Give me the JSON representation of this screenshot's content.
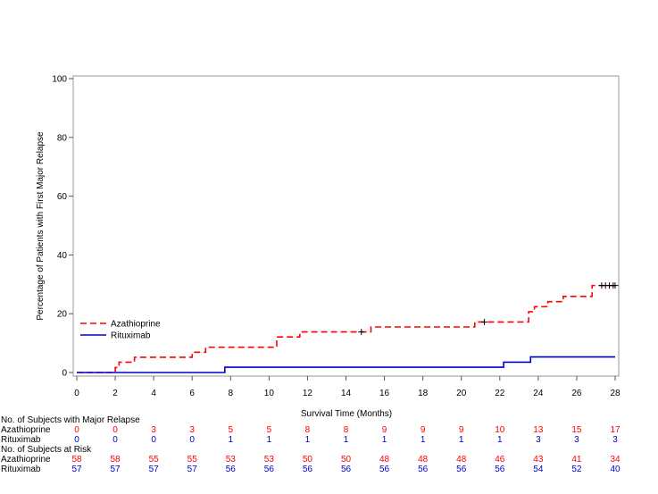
{
  "chart_data": {
    "type": "line",
    "title": "",
    "xlabel": "Survival Time (Months)",
    "ylabel": "Percentage of Patients with First Major Relapse",
    "xlim": [
      0,
      28
    ],
    "ylim": [
      0,
      100
    ],
    "x_ticks": [
      0,
      2,
      4,
      6,
      8,
      10,
      12,
      14,
      16,
      18,
      20,
      22,
      24,
      26,
      28
    ],
    "y_ticks": [
      0,
      20,
      40,
      60,
      80,
      100
    ],
    "grid": false,
    "legend_position": "lower-left",
    "series": [
      {
        "name": "Azathioprine",
        "color": "#ff0000",
        "style": "dashed",
        "x": [
          0,
          2,
          2.2,
          3.0,
          6.0,
          6.7,
          10.4,
          11.6,
          15.3,
          20.7,
          23.5,
          23.8,
          24.5,
          25.3,
          26.8,
          28.0
        ],
        "y": [
          0,
          1.7,
          3.5,
          5.2,
          6.9,
          8.6,
          12.1,
          13.8,
          15.5,
          17.2,
          20.7,
          22.4,
          24.1,
          25.9,
          29.6,
          29.6
        ],
        "censored": [
          {
            "x": 14.8,
            "y": 13.8
          },
          {
            "x": 21.2,
            "y": 17.2
          },
          {
            "x": 27.3,
            "y": 29.6
          },
          {
            "x": 27.5,
            "y": 29.6
          },
          {
            "x": 27.7,
            "y": 29.6
          },
          {
            "x": 27.9,
            "y": 29.6
          },
          {
            "x": 28.0,
            "y": 29.6
          }
        ]
      },
      {
        "name": "Rituximab",
        "color": "#0000cc",
        "style": "solid",
        "x": [
          0,
          7.7,
          22.2,
          23.6,
          28.0
        ],
        "y": [
          0,
          1.8,
          3.5,
          5.3,
          5.3
        ],
        "censored": []
      }
    ],
    "risk_table": {
      "times": [
        0,
        2,
        4,
        6,
        8,
        10,
        12,
        14,
        16,
        18,
        20,
        22,
        24,
        26,
        28
      ],
      "sections": [
        {
          "title": "No. of Subjects with Major Relapse",
          "rows": [
            {
              "label": "Azathioprine",
              "color": "#ff0000",
              "values": [
                "0",
                "0",
                "3",
                "3",
                "5",
                "5",
                "8",
                "8",
                "9",
                "9",
                "9",
                "10",
                "13",
                "15",
                "17"
              ]
            },
            {
              "label": "Rituximab",
              "color": "#0000cc",
              "values": [
                "0",
                "0",
                "0",
                "0",
                "1",
                "1",
                "1",
                "1",
                "1",
                "1",
                "1",
                "1",
                "3",
                "3",
                "3"
              ]
            }
          ]
        },
        {
          "title": "No. of Subjects at Risk",
          "rows": [
            {
              "label": "Azathioprine",
              "color": "#ff0000",
              "values": [
                "58",
                "58",
                "55",
                "55",
                "53",
                "53",
                "50",
                "50",
                "48",
                "48",
                "48",
                "46",
                "43",
                "41",
                "34"
              ]
            },
            {
              "label": "Rituximab",
              "color": "#0000cc",
              "values": [
                "57",
                "57",
                "57",
                "57",
                "56",
                "56",
                "56",
                "56",
                "56",
                "56",
                "56",
                "56",
                "54",
                "52",
                "40"
              ]
            }
          ]
        }
      ]
    }
  }
}
